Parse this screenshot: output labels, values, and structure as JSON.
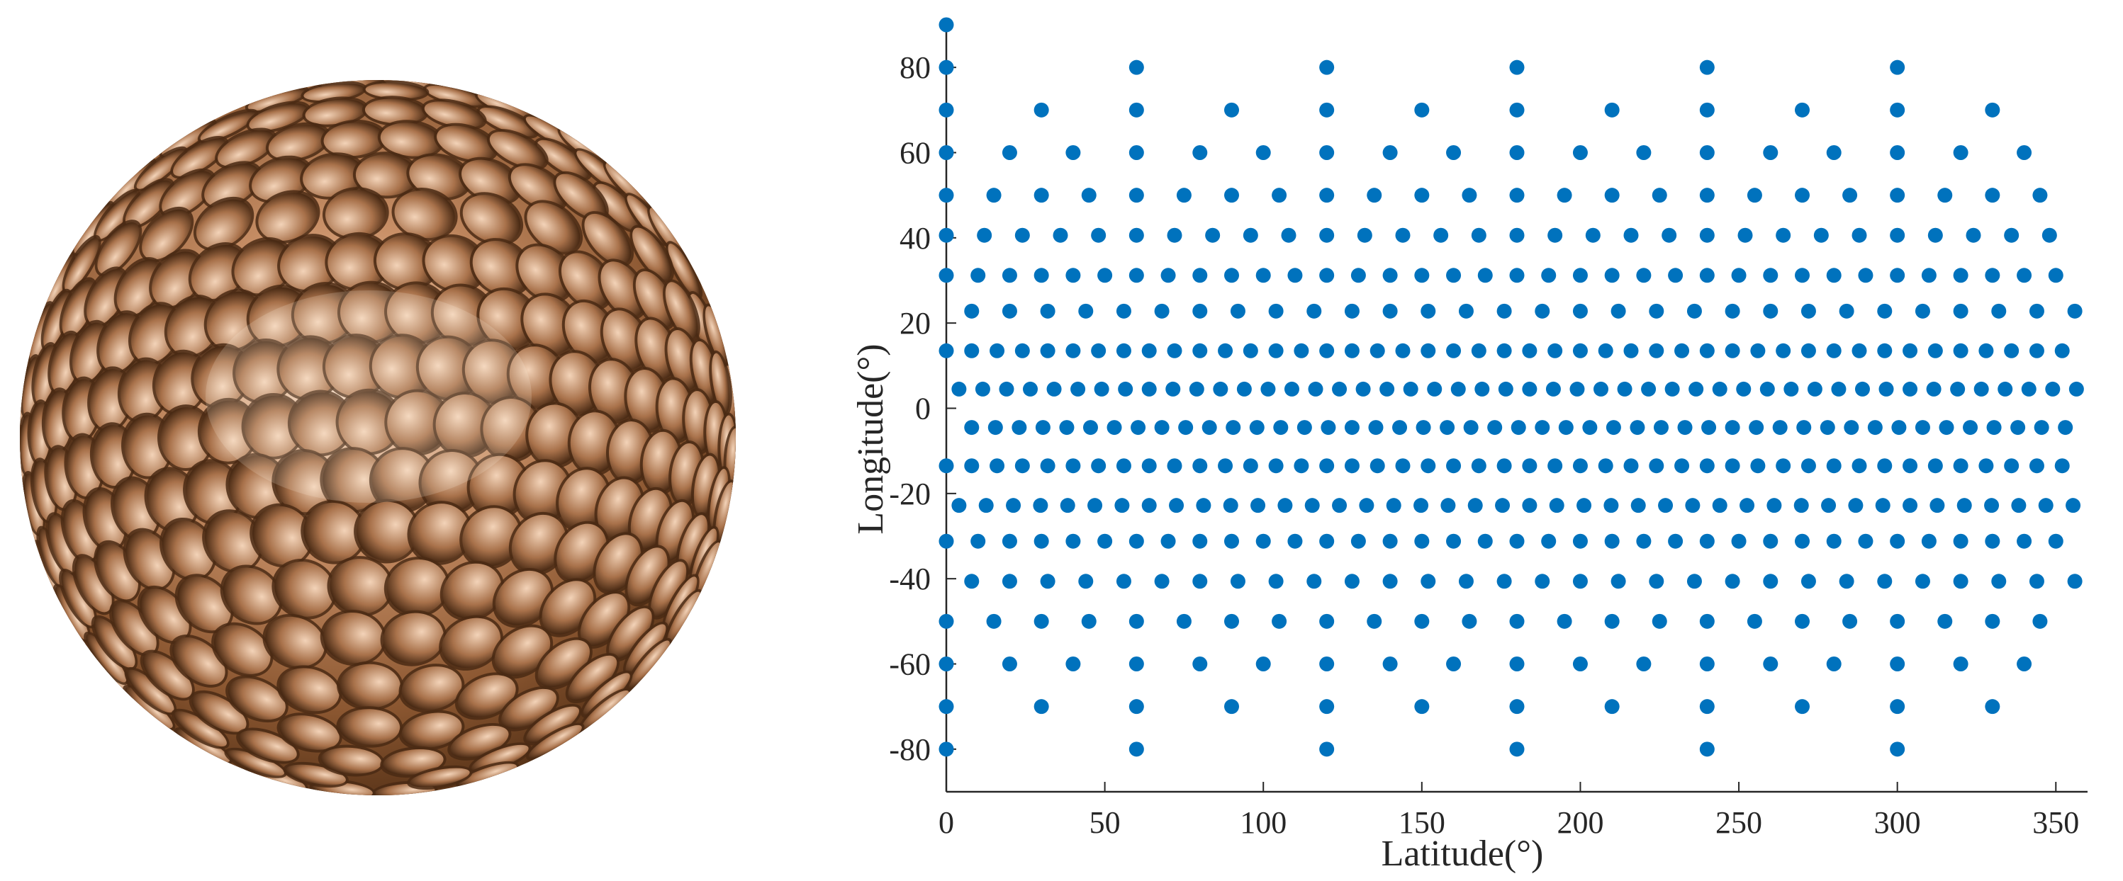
{
  "figure": {
    "photo_caption": "",
    "photo_subject": "spherical-satellite-with-retroreflectors"
  },
  "colors": {
    "marker": "#0072bd",
    "axis": "#262626",
    "sphere_light": "#f2d9c4",
    "sphere_mid": "#b57d52",
    "sphere_dark": "#5a3418",
    "cavity": "#4a2a14"
  },
  "chart_data": {
    "type": "scatter",
    "title": "",
    "xlabel": "Latitude(°)",
    "ylabel": "Longitude(°)",
    "xlim": [
      0,
      360
    ],
    "ylim": [
      -90,
      90
    ],
    "xticks": [
      0,
      50,
      100,
      150,
      200,
      250,
      300,
      350
    ],
    "yticks": [
      -80,
      -60,
      -40,
      -20,
      0,
      20,
      40,
      60,
      80
    ],
    "grid": false,
    "legend": "none",
    "rings": [
      {
        "lat": 90,
        "count": 1,
        "offset": 0
      },
      {
        "lat": 80,
        "count": 6,
        "offset": 0
      },
      {
        "lat": 70,
        "count": 12,
        "offset": 0
      },
      {
        "lat": 60,
        "count": 18,
        "offset": 0
      },
      {
        "lat": 50,
        "count": 24,
        "offset": 0
      },
      {
        "lat": 40.6,
        "count": 30,
        "offset": 0
      },
      {
        "lat": 31.2,
        "count": 36,
        "offset": 0
      },
      {
        "lat": 22.8,
        "count": 30,
        "offset": 8
      },
      {
        "lat": 13.5,
        "count": 45,
        "offset": 0
      },
      {
        "lat": 4.5,
        "count": 48,
        "offset": 4
      },
      {
        "lat": -4.5,
        "count": 48,
        "offset": 8
      },
      {
        "lat": -13.5,
        "count": 45,
        "offset": 0
      },
      {
        "lat": -22.8,
        "count": 42,
        "offset": 4
      },
      {
        "lat": -31.2,
        "count": 36,
        "offset": 0
      },
      {
        "lat": -40.6,
        "count": 30,
        "offset": 8
      },
      {
        "lat": -50,
        "count": 24,
        "offset": 0
      },
      {
        "lat": -60,
        "count": 18,
        "offset": 0
      },
      {
        "lat": -70,
        "count": 12,
        "offset": 0
      },
      {
        "lat": -80,
        "count": 6,
        "offset": 0
      }
    ],
    "points_note": "each ring places `count` points at x = offset + k*360/count, y = lat"
  }
}
